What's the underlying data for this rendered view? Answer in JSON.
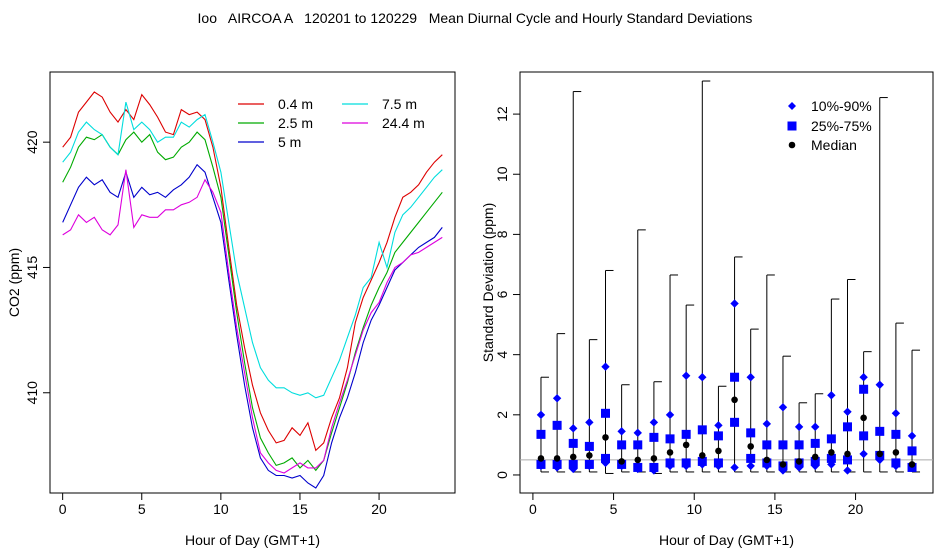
{
  "page_title": "Ioo   AIRCOA A   120201 to 120229   Mean Diurnal Cycle and Hourly Standard Deviations",
  "chart_data": [
    {
      "type": "line",
      "xlabel": "Hour of Day (GMT+1)",
      "ylabel": "CO2 (ppm)",
      "xlim": [
        -0.8,
        24.8
      ],
      "ylim": [
        406.0,
        422.8
      ],
      "xticks": [
        0,
        5,
        10,
        15,
        20
      ],
      "yticks": [
        410,
        415,
        420
      ],
      "legend_placement": "top-right",
      "x": [
        0,
        0.5,
        1,
        1.5,
        2,
        2.5,
        3,
        3.5,
        4,
        4.5,
        5,
        5.5,
        6,
        6.5,
        7,
        7.5,
        8,
        8.5,
        9,
        9.5,
        10,
        10.5,
        11,
        11.5,
        12,
        12.5,
        13,
        13.5,
        14,
        14.5,
        15,
        15.5,
        16,
        16.5,
        17,
        17.5,
        18,
        18.5,
        19,
        19.5,
        20,
        20.5,
        21,
        21.5,
        22,
        22.5,
        23,
        23.5,
        24
      ],
      "series": [
        {
          "name": "0.4 m",
          "color": "#dd0000",
          "values": [
            419.8,
            420.2,
            421.2,
            421.6,
            422.0,
            421.8,
            421.2,
            420.8,
            421.3,
            420.9,
            421.9,
            421.5,
            421.0,
            420.4,
            420.3,
            421.3,
            421.1,
            421.2,
            420.9,
            419.8,
            418.2,
            415.8,
            413.5,
            411.8,
            410.3,
            409.2,
            408.5,
            408.0,
            408.1,
            408.6,
            408.3,
            408.8,
            407.7,
            408.0,
            409.0,
            409.8,
            411.0,
            412.8,
            413.8,
            414.5,
            415.2,
            416.0,
            417.0,
            417.8,
            418.0,
            418.3,
            418.8,
            419.2,
            419.5
          ]
        },
        {
          "name": "2.5 m",
          "color": "#00aa00",
          "values": [
            418.4,
            419.0,
            419.8,
            420.2,
            420.1,
            420.3,
            419.8,
            419.5,
            420.1,
            420.4,
            420.0,
            420.3,
            419.6,
            419.3,
            419.4,
            419.8,
            420.0,
            420.4,
            420.1,
            419.0,
            417.8,
            415.5,
            413.2,
            411.2,
            409.4,
            408.2,
            407.6,
            407.1,
            407.2,
            407.4,
            407.0,
            407.3,
            406.9,
            407.3,
            408.4,
            409.4,
            410.4,
            411.6,
            412.6,
            413.5,
            414.2,
            414.8,
            415.6,
            416.0,
            416.4,
            416.8,
            417.2,
            417.6,
            418.0
          ]
        },
        {
          "name": "5 m",
          "color": "#0000cc",
          "values": [
            416.8,
            417.5,
            418.2,
            418.6,
            418.3,
            418.5,
            418.0,
            417.8,
            418.8,
            417.8,
            418.2,
            417.9,
            418.0,
            417.8,
            418.1,
            418.3,
            418.6,
            419.1,
            418.8,
            417.8,
            416.8,
            414.5,
            412.3,
            410.3,
            408.6,
            407.4,
            406.9,
            406.7,
            406.7,
            406.6,
            406.7,
            406.4,
            406.2,
            406.7,
            408.0,
            409.0,
            409.8,
            410.8,
            412.0,
            412.9,
            413.5,
            414.2,
            414.9,
            415.2,
            415.5,
            415.8,
            416.0,
            416.2,
            416.6
          ]
        },
        {
          "name": "7.5 m",
          "color": "#00dddd",
          "values": [
            419.2,
            419.6,
            420.4,
            420.8,
            420.5,
            420.3,
            419.8,
            419.5,
            421.6,
            420.5,
            420.8,
            420.5,
            420.0,
            420.2,
            420.2,
            420.8,
            420.6,
            420.9,
            421.1,
            420.0,
            418.8,
            416.8,
            414.8,
            413.4,
            412.0,
            411.0,
            410.5,
            410.2,
            410.2,
            410.0,
            409.9,
            410.0,
            409.8,
            409.9,
            410.6,
            411.3,
            412.2,
            413.1,
            414.2,
            414.6,
            416.0,
            415.0,
            416.4,
            417.1,
            417.4,
            417.8,
            418.2,
            418.6,
            418.9
          ]
        },
        {
          "name": "24.4 m",
          "color": "#dd00dd",
          "values": [
            416.3,
            416.5,
            417.1,
            416.8,
            417.0,
            416.5,
            416.3,
            416.7,
            418.9,
            416.6,
            417.1,
            417.0,
            417.0,
            417.3,
            417.3,
            417.5,
            417.6,
            417.8,
            418.5,
            418.0,
            417.2,
            414.8,
            412.6,
            410.8,
            409.0,
            407.6,
            407.2,
            406.9,
            406.8,
            407.0,
            407.2,
            407.0,
            407.0,
            407.3,
            408.6,
            409.6,
            410.5,
            411.5,
            412.5,
            413.2,
            413.6,
            414.4,
            415.0,
            415.2,
            415.5,
            415.6,
            415.8,
            416.0,
            416.2
          ]
        }
      ]
    },
    {
      "type": "scatter",
      "xlabel": "Hour of Day (GMT+1)",
      "ylabel": "Standard Deviation (ppm)",
      "xlim": [
        -0.8,
        24.8
      ],
      "ylim": [
        -0.6,
        13.4
      ],
      "xticks": [
        0,
        5,
        10,
        15,
        20
      ],
      "yticks": [
        0,
        2,
        4,
        6,
        8,
        10,
        12
      ],
      "reference_line": 0.5,
      "legend_placement": "top-right",
      "x": [
        0.5,
        1.5,
        2.5,
        3.5,
        4.5,
        5.5,
        6.5,
        7.5,
        8.5,
        9.5,
        10.5,
        11.5,
        12.5,
        13.5,
        14.5,
        15.5,
        16.5,
        17.5,
        18.5,
        19.5,
        20.5,
        21.5,
        22.5,
        23.5
      ],
      "whisker_max": [
        3.25,
        4.7,
        12.75,
        4.5,
        6.8,
        3.0,
        8.15,
        3.1,
        6.65,
        5.65,
        13.1,
        2.95,
        7.25,
        4.85,
        6.65,
        3.95,
        2.4,
        2.7,
        5.85,
        6.5,
        4.1,
        12.55,
        5.05,
        4.15
      ],
      "whisker_min": [
        0.1,
        0.1,
        0.1,
        0.1,
        0.05,
        0.1,
        0.1,
        0.05,
        0.1,
        0.1,
        0.1,
        0.1,
        0.1,
        0.1,
        0.1,
        0.1,
        0.1,
        0.1,
        0.1,
        0.1,
        0.1,
        0.1,
        0.1,
        0.1
      ],
      "series": [
        {
          "name": "10%-90%",
          "marker": "diamond",
          "color": "#0000ff",
          "high": [
            2.0,
            2.55,
            1.55,
            1.75,
            3.6,
            1.45,
            1.4,
            1.75,
            2.0,
            3.3,
            3.25,
            1.65,
            5.7,
            3.25,
            1.7,
            2.25,
            1.6,
            1.6,
            2.65,
            2.1,
            3.25,
            3.0,
            2.05,
            1.3
          ],
          "low": [
            0.3,
            0.25,
            0.2,
            0.3,
            0.4,
            0.3,
            0.2,
            0.15,
            0.3,
            0.3,
            0.35,
            0.3,
            0.25,
            0.3,
            0.3,
            0.15,
            0.25,
            0.3,
            0.35,
            0.15,
            0.7,
            0.5,
            0.3,
            0.25
          ]
        },
        {
          "name": "25%-75%",
          "marker": "square",
          "color": "#0000ff",
          "high": [
            1.35,
            1.65,
            1.05,
            0.95,
            2.05,
            1.0,
            1.0,
            1.25,
            1.2,
            1.35,
            1.5,
            1.3,
            3.25,
            1.4,
            1.0,
            1.0,
            1.0,
            1.05,
            1.2,
            1.6,
            2.85,
            1.45,
            1.35,
            0.8
          ],
          "low": [
            0.35,
            0.35,
            0.35,
            0.35,
            0.55,
            0.35,
            0.25,
            0.25,
            0.4,
            0.4,
            0.45,
            0.4,
            1.75,
            0.55,
            0.4,
            0.3,
            0.4,
            0.45,
            0.55,
            0.5,
            1.3,
            0.65,
            0.4,
            0.25
          ]
        },
        {
          "name": "Median",
          "marker": "circle",
          "color": "#000000",
          "values": [
            0.55,
            0.55,
            0.6,
            0.65,
            1.25,
            0.45,
            0.5,
            0.55,
            0.75,
            1.0,
            0.65,
            0.8,
            2.5,
            0.95,
            0.5,
            0.35,
            0.45,
            0.6,
            0.75,
            0.7,
            1.9,
            0.7,
            0.75,
            0.35
          ]
        }
      ]
    }
  ]
}
